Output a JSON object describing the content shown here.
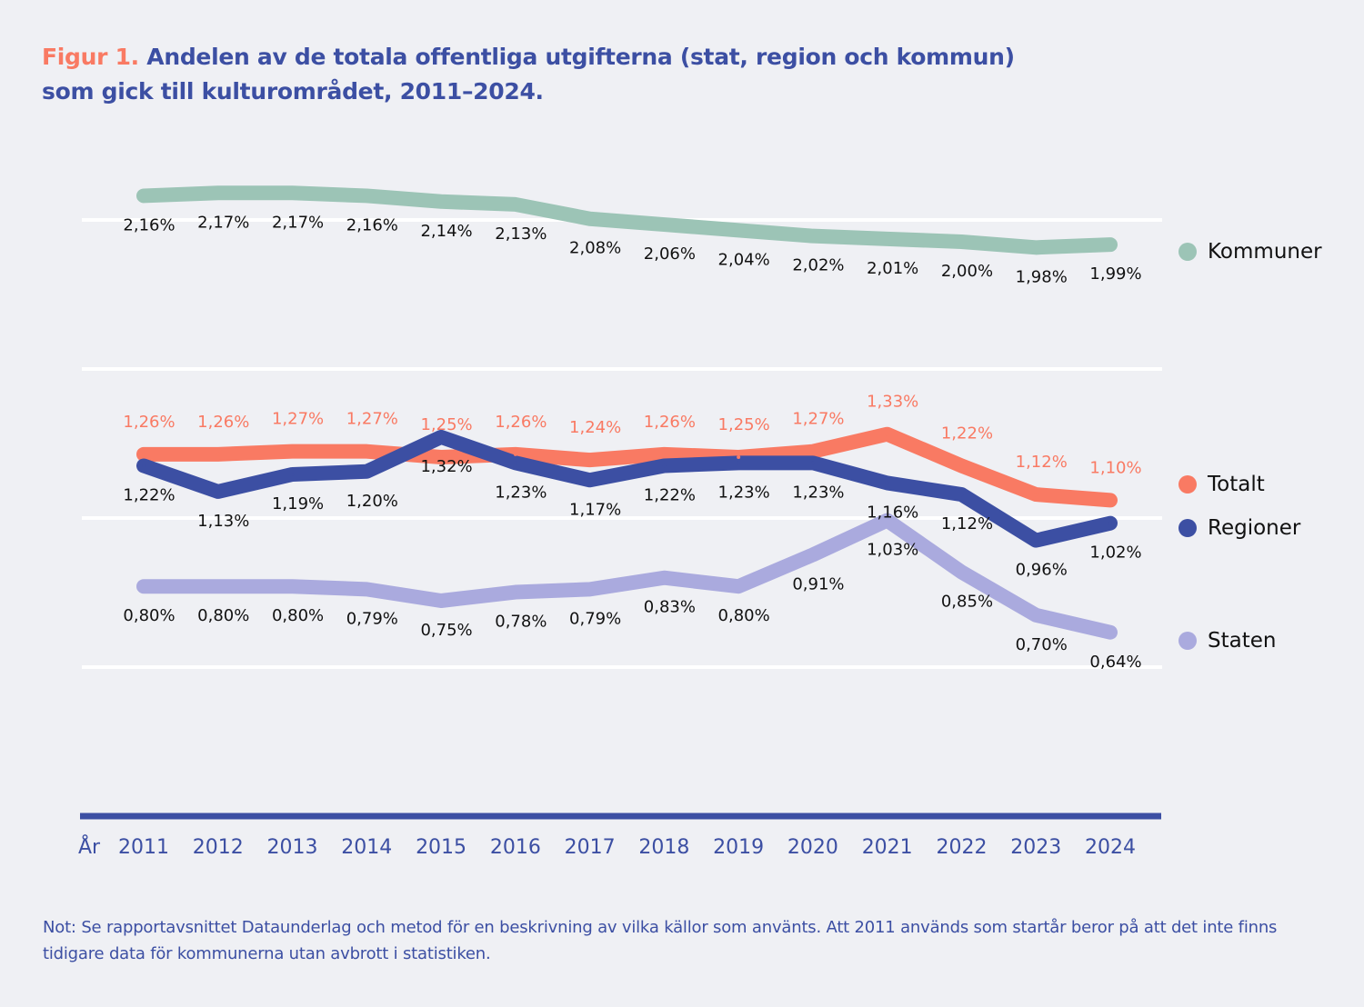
{
  "title": {
    "prefix": "Figur 1.",
    "line1": " Andelen av de totala offentliga utgifterna (stat, region och kommun)",
    "line2": "som gick till kulturområdet, 2011–2024."
  },
  "note": "Not: Se rapportavsnittet Dataunderlag och metod för en beskrivning av vilka källor som använts. Att 2011 används som startår beror på att det inte finns tidigare data för kommunerna utan avbrott i statistiken.",
  "chart_data": {
    "type": "line",
    "xlabel": "År",
    "x": [
      "2011",
      "2012",
      "2013",
      "2014",
      "2015",
      "2016",
      "2017",
      "2018",
      "2019",
      "2020",
      "2021",
      "2022",
      "2023",
      "2024"
    ],
    "ylim": [
      0,
      2.6
    ],
    "grid": true,
    "legend_placement": "right",
    "series": [
      {
        "name": "Kommuner",
        "color": "#9cc4b6",
        "label_color": "#111111",
        "values": [
          2.16,
          2.17,
          2.17,
          2.16,
          2.14,
          2.13,
          2.08,
          2.06,
          2.04,
          2.02,
          2.01,
          2.0,
          1.98,
          1.99
        ],
        "labels": [
          "2,16%",
          "2,17%",
          "2,17%",
          "2,16%",
          "2,14%",
          "2,13%",
          "2,08%",
          "2,06%",
          "2,04%",
          "2,02%",
          "2,01%",
          "2,00%",
          "1,98%",
          "1,99%"
        ]
      },
      {
        "name": "Staten",
        "color": "#aaaade",
        "label_color": "#111111",
        "values": [
          0.8,
          0.8,
          0.8,
          0.79,
          0.75,
          0.78,
          0.79,
          0.83,
          0.8,
          0.91,
          1.03,
          0.85,
          0.7,
          0.64
        ],
        "labels": [
          "0,80%",
          "0,80%",
          "0,80%",
          "0,79%",
          "0,75%",
          "0,78%",
          "0,79%",
          "0,83%",
          "0,80%",
          "0,91%",
          "1,03%",
          "0,85%",
          "0,70%",
          "0,64%"
        ]
      },
      {
        "name": "Totalt",
        "color": "#f97a63",
        "label_color": "#f97a63",
        "values": [
          1.26,
          1.26,
          1.27,
          1.27,
          1.25,
          1.26,
          1.24,
          1.26,
          1.25,
          1.27,
          1.33,
          1.22,
          1.12,
          1.1
        ],
        "labels": [
          "1,26%",
          "1,26%",
          "1,27%",
          "1,27%",
          "1,25%",
          "1,26%",
          "1,24%",
          "1,26%",
          "1,25%",
          "1,27%",
          "1,33%",
          "1,22%",
          "1,12%",
          "1,10%"
        ]
      },
      {
        "name": "Regioner",
        "color": "#3c4fa3",
        "label_color": "#111111",
        "values": [
          1.22,
          1.13,
          1.19,
          1.2,
          1.32,
          1.23,
          1.17,
          1.22,
          1.23,
          1.23,
          1.16,
          1.12,
          0.96,
          1.02
        ],
        "labels": [
          "1,22%",
          "1,13%",
          "1,19%",
          "1,20%",
          "1,32%",
          "1,23%",
          "1,17%",
          "1,22%",
          "1,23%",
          "1,23%",
          "1,16%",
          "1,12%",
          "0,96%",
          "1,02%"
        ]
      }
    ],
    "axis_color": "#3c4fa3"
  }
}
